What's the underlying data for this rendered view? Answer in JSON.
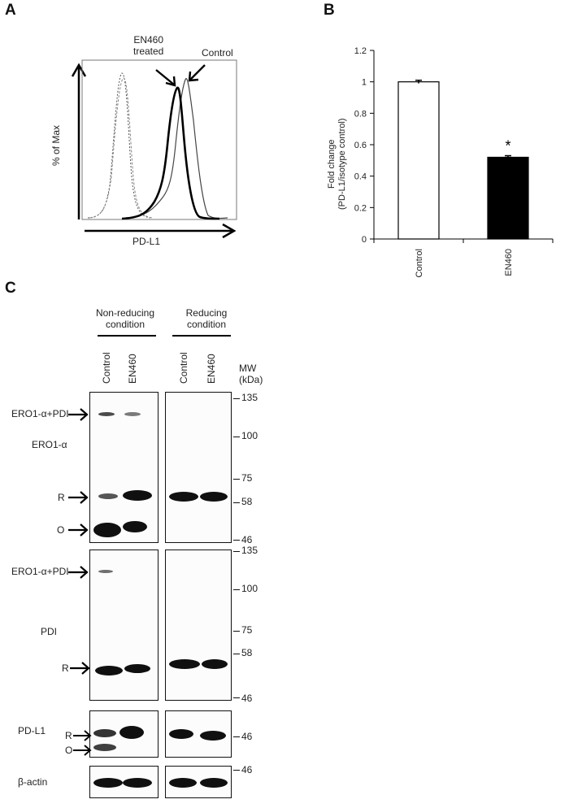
{
  "panels": {
    "a": "A",
    "b": "B",
    "c": "C"
  },
  "panel_a": {
    "y_label": "% of Max",
    "x_label": "PD-L1",
    "treated_label_line1": "EN460",
    "treated_label_line2": "treated",
    "control_label": "Control"
  },
  "panel_b": {
    "y_label_line1": "Fold change",
    "y_label_line2": "(PD-L1/isotype control)",
    "significance": "*"
  },
  "chart_data": {
    "type": "bar",
    "categories": [
      "Control",
      "EN460"
    ],
    "values": [
      1.0,
      0.52
    ],
    "errors": [
      0.01,
      0.01
    ],
    "ylim": [
      0,
      1.2
    ],
    "yticks": [
      0,
      0.2,
      0.4,
      0.6,
      0.8,
      1,
      1.2
    ],
    "ytick_labels": [
      "0",
      "0.2",
      "0.4",
      "0.6",
      "0.8",
      "1",
      "1.2"
    ],
    "bar_colors": [
      "#ffffff",
      "#000000"
    ],
    "xlabel": "",
    "ylabel": "Fold change (PD-L1/isotype control)"
  },
  "panel_c": {
    "group1_line1": "Non-reducing",
    "group1_line2": "condition",
    "group2_line1": "Reducing",
    "group2_line2": "condition",
    "lane_control": "Control",
    "lane_en460": "EN460",
    "mw_line1": "MW",
    "mw_line2": "(kDa)",
    "ero1": {
      "complex_label": "ERO1-α+PDI",
      "name": "ERO1-α",
      "r": "R",
      "o": "O",
      "mw": [
        "135",
        "100",
        "75",
        "58",
        "46"
      ]
    },
    "pdi": {
      "complex_label": "ERO1-α+PDI",
      "name": "PDI",
      "r": "R",
      "mw": [
        "135",
        "100",
        "75",
        "58",
        "46"
      ]
    },
    "pdl1": {
      "name": "PD-L1",
      "r": "R",
      "o": "O",
      "mw": "46"
    },
    "actin": {
      "name": "β-actin",
      "mw": "46"
    }
  }
}
